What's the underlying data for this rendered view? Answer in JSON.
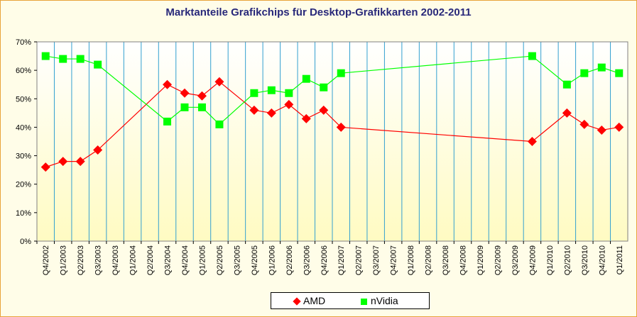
{
  "chart_data": {
    "type": "line",
    "title": "Marktanteile Grafikchips für Desktop-Grafikkarten 2002-2011",
    "xlabel": "",
    "ylabel": "",
    "ylim": [
      0,
      70
    ],
    "yticks": [
      "0%",
      "10%",
      "20%",
      "30%",
      "40%",
      "50%",
      "60%",
      "70%"
    ],
    "categories": [
      "Q4/2002",
      "Q1/2003",
      "Q2/2003",
      "Q3/2003",
      "Q4/2003",
      "Q1/2004",
      "Q2/2004",
      "Q3/2004",
      "Q4/2004",
      "Q1/2005",
      "Q2/2005",
      "Q3/2005",
      "Q4/2005",
      "Q1/2006",
      "Q2/2006",
      "Q3/2006",
      "Q4/2006",
      "Q1/2007",
      "Q2/2007",
      "Q3/2007",
      "Q4/2007",
      "Q1/2008",
      "Q2/2008",
      "Q3/2008",
      "Q4/2008",
      "Q1/2009",
      "Q2/2009",
      "Q3/2009",
      "Q4/2009",
      "Q1/2010",
      "Q2/2010",
      "Q3/2010",
      "Q4/2010",
      "Q1/2011"
    ],
    "series": [
      {
        "name": "AMD",
        "color": "#ff0000",
        "marker": "diamond",
        "values": [
          26,
          28,
          28,
          32,
          null,
          null,
          null,
          55,
          52,
          51,
          56,
          null,
          46,
          45,
          48,
          43,
          46,
          40,
          null,
          null,
          null,
          null,
          null,
          null,
          null,
          null,
          null,
          null,
          35,
          null,
          45,
          41,
          39,
          40
        ]
      },
      {
        "name": "nVidia",
        "color": "#00ff00",
        "marker": "square",
        "values": [
          65,
          64,
          64,
          62,
          null,
          null,
          null,
          42,
          47,
          47,
          41,
          null,
          52,
          53,
          52,
          57,
          54,
          59,
          null,
          null,
          null,
          null,
          null,
          null,
          null,
          null,
          null,
          null,
          65,
          null,
          55,
          59,
          61,
          59
        ]
      }
    ],
    "grid": "vertical",
    "legend_position": "bottom"
  }
}
